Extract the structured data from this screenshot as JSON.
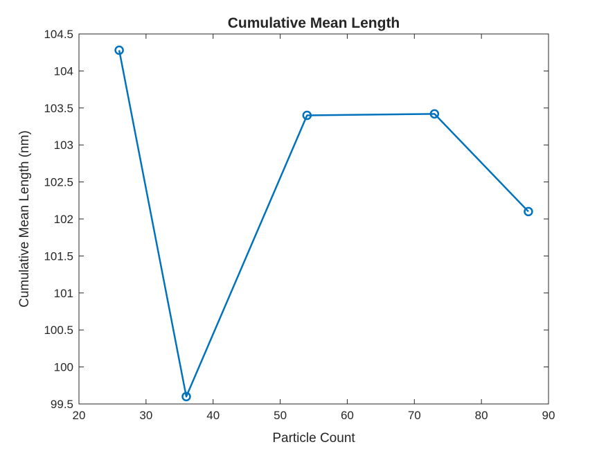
{
  "chart_data": {
    "type": "line",
    "title": "Cumulative Mean Length",
    "xlabel": "Particle Count",
    "ylabel": "Cumulative Mean Length (nm)",
    "xlim": [
      20,
      90
    ],
    "ylim": [
      99.5,
      104.5
    ],
    "xticks": [
      "20",
      "30",
      "40",
      "50",
      "60",
      "70",
      "80",
      "90"
    ],
    "yticks": [
      "99.5",
      "100",
      "100.5",
      "101",
      "101.5",
      "102",
      "102.5",
      "103",
      "103.5",
      "104",
      "104.5"
    ],
    "grid": false,
    "marker": "circle",
    "series": [
      {
        "color": "#0072BD",
        "x": [
          26,
          36,
          54,
          73,
          87
        ],
        "y": [
          104.28,
          99.6,
          103.4,
          103.42,
          102.1
        ]
      }
    ]
  }
}
